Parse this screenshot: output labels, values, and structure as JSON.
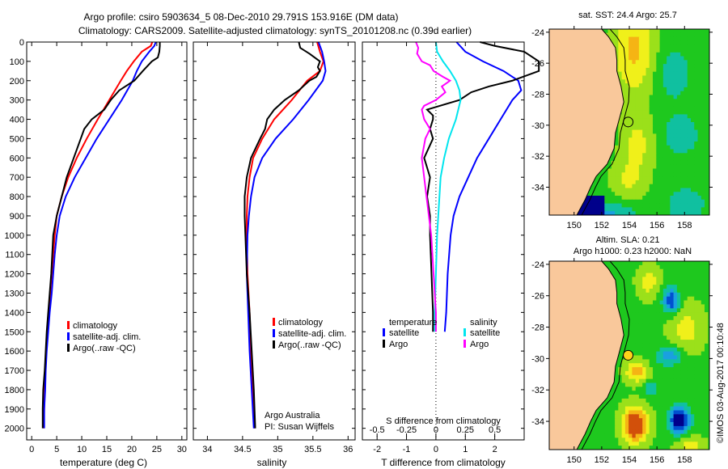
{
  "header": {
    "title_line1": "Argo profile: csiro 5903634_5 08-Dec-2010 29.791S 153.916E (DM data)",
    "title_line2": "Climatology: CARS2009. Satellite-adjusted climatology: synTS_20101208.nc (0.39d earlier)"
  },
  "colors": {
    "climatology": "#ff0000",
    "satellite": "#0000ff",
    "argo": "#000000",
    "sal_satellite": "#00e5ee",
    "sal_argo": "#ff00ff",
    "land": "#f9c89b"
  },
  "chart_data": [
    {
      "type": "line",
      "id": "temperature-profile",
      "xlabel": "temperature (deg C)",
      "ylabel": "",
      "xlim": [
        -1,
        31
      ],
      "ylim": [
        2060,
        0
      ],
      "xticks": [
        0,
        5,
        10,
        15,
        20,
        25,
        30
      ],
      "yticks": [
        0,
        100,
        200,
        300,
        400,
        500,
        600,
        700,
        800,
        900,
        1000,
        1100,
        1200,
        1300,
        1400,
        1500,
        1600,
        1700,
        1800,
        1900,
        2000
      ],
      "legend": [
        "climatology",
        "satellite-adj. clim.",
        "Argo(..raw -QC)"
      ],
      "legend_position": "center",
      "series": [
        {
          "name": "climatology",
          "color": "#ff0000",
          "depth": [
            0,
            20,
            50,
            100,
            150,
            200,
            300,
            400,
            500,
            600,
            700,
            800,
            900,
            1000,
            1100,
            1200,
            1300,
            1400,
            1500,
            1600,
            1700,
            1800,
            1900,
            2000
          ],
          "values": [
            24.1,
            23.8,
            22.0,
            20.4,
            19.0,
            17.8,
            15.5,
            13.2,
            11.0,
            9.0,
            7.3,
            6.0,
            5.0,
            4.6,
            4.3,
            4.0,
            3.7,
            3.4,
            3.1,
            2.9,
            2.7,
            2.6,
            2.5,
            2.4
          ]
        },
        {
          "name": "satellite-adj. clim.",
          "color": "#0000ff",
          "depth": [
            0,
            20,
            50,
            100,
            150,
            200,
            300,
            400,
            500,
            600,
            700,
            800,
            900,
            1000,
            1100,
            1200,
            1300,
            1400,
            1500,
            1600,
            1700,
            1800,
            1900,
            2000
          ],
          "values": [
            24.8,
            24.5,
            23.5,
            22.0,
            21.0,
            20.2,
            18.0,
            15.5,
            13.0,
            10.8,
            8.6,
            6.8,
            5.6,
            5.0,
            4.6,
            4.3,
            4.0,
            3.6,
            3.3,
            3.0,
            2.8,
            2.7,
            2.5,
            2.5
          ]
        },
        {
          "name": "Argo(..raw -QC)",
          "color": "#000000",
          "depth": [
            0,
            20,
            50,
            80,
            100,
            150,
            200,
            250,
            300,
            350,
            400,
            450,
            500,
            600,
            700,
            800,
            900,
            1000,
            1100,
            1200,
            1300,
            1400,
            1500,
            1600,
            1700,
            1800,
            1900,
            2000
          ],
          "values": [
            25.6,
            25.6,
            25.5,
            25.2,
            24.0,
            22.2,
            20.5,
            17.5,
            15.8,
            14.5,
            12.0,
            10.5,
            9.8,
            8.4,
            7.0,
            6.0,
            5.0,
            4.3,
            4.1,
            3.9,
            3.6,
            3.3,
            3.0,
            2.8,
            2.6,
            2.3,
            2.2,
            2.2
          ]
        }
      ]
    },
    {
      "type": "line",
      "id": "salinity-profile",
      "xlabel": "salinity",
      "xlim": [
        33.8,
        36.1
      ],
      "ylim": [
        2060,
        0
      ],
      "xticks": [
        34,
        34.5,
        35,
        35.5,
        36
      ],
      "xticklabels": [
        "34",
        "34.5",
        "35",
        "35.5",
        "36"
      ],
      "legend": [
        "climatology",
        "satellite-adj. clim.",
        "Argo(..raw -QC)"
      ],
      "annotation": [
        "Argo Australia",
        "PI: Susan Wijffels"
      ],
      "series": [
        {
          "name": "climatology",
          "color": "#ff0000",
          "depth": [
            0,
            50,
            100,
            150,
            200,
            300,
            400,
            500,
            600,
            700,
            800,
            900,
            1000,
            1200,
            1400,
            1600,
            1800,
            2000
          ],
          "values": [
            35.56,
            35.6,
            35.65,
            35.6,
            35.42,
            35.2,
            34.95,
            34.78,
            34.65,
            34.6,
            34.57,
            34.56,
            34.56,
            34.57,
            34.6,
            34.62,
            34.65,
            34.67
          ]
        },
        {
          "name": "satellite-adj. clim.",
          "color": "#0000ff",
          "depth": [
            0,
            50,
            100,
            150,
            200,
            300,
            400,
            500,
            600,
            700,
            800,
            900,
            1000,
            1200,
            1400,
            1600,
            1800,
            2000
          ],
          "values": [
            35.58,
            35.63,
            35.66,
            35.68,
            35.64,
            35.44,
            35.22,
            34.97,
            34.78,
            34.67,
            34.62,
            34.59,
            34.57,
            34.56,
            34.58,
            34.6,
            34.63,
            34.66
          ]
        },
        {
          "name": "Argo(..raw -QC)",
          "color": "#000000",
          "depth": [
            0,
            30,
            60,
            100,
            130,
            150,
            180,
            200,
            250,
            300,
            350,
            400,
            450,
            500,
            600,
            700,
            800,
            900,
            1000,
            1200,
            1400,
            1600,
            1800,
            2000
          ],
          "values": [
            35.3,
            35.32,
            35.45,
            35.6,
            35.57,
            35.6,
            35.55,
            35.45,
            35.3,
            35.1,
            34.95,
            34.85,
            34.82,
            34.75,
            34.62,
            34.56,
            34.53,
            34.53,
            34.54,
            34.56,
            34.6,
            34.63,
            34.66,
            34.68
          ]
        }
      ]
    },
    {
      "type": "line",
      "id": "difference-profile",
      "xlabel": "T difference from climatology",
      "xlabel_top": "S difference from climatology",
      "xlim": [
        -2.5,
        3.0
      ],
      "ylim": [
        2060,
        0
      ],
      "xticks": [
        -2,
        -1,
        0,
        1,
        2
      ],
      "s_xticks": [
        -0.5,
        -0.25,
        0,
        0.25,
        0.5
      ],
      "s_xticklabels": [
        "-0.5",
        "-0.25",
        "0",
        "0.25",
        "0.5"
      ],
      "legend_temperature_title": "temperature",
      "legend_salinity_title": "salinity",
      "legend": [
        "satellite",
        "Argo",
        "satellite",
        "Argo"
      ],
      "series": [
        {
          "name": "temperature satellite",
          "color": "#0000ff",
          "unit": "T",
          "depth": [
            0,
            50,
            100,
            150,
            200,
            250,
            300,
            400,
            500,
            600,
            700,
            800,
            900,
            1000,
            1200,
            1400,
            1500
          ],
          "values": [
            0.7,
            1.0,
            1.6,
            2.3,
            2.8,
            2.9,
            2.6,
            2.2,
            1.8,
            1.4,
            1.1,
            0.8,
            0.6,
            0.5,
            0.4,
            0.35,
            0.3
          ]
        },
        {
          "name": "temperature Argo",
          "color": "#000000",
          "unit": "T",
          "depth": [
            0,
            20,
            50,
            100,
            150,
            200,
            230,
            260,
            300,
            350,
            380,
            400,
            450,
            500,
            600,
            700,
            800,
            900,
            1000,
            1200,
            1400,
            1500
          ],
          "values": [
            1.5,
            2.0,
            3.0,
            3.5,
            3.5,
            2.6,
            1.8,
            1.2,
            0.8,
            -0.3,
            -0.1,
            -0.1,
            -0.2,
            -0.1,
            -0.4,
            -0.2,
            -0.3,
            -0.2,
            -0.2,
            -0.15,
            -0.1,
            -0.1
          ]
        },
        {
          "name": "salinity satellite",
          "color": "#00e5ee",
          "unit": "S",
          "depth": [
            0,
            50,
            100,
            150,
            200,
            250,
            300,
            400,
            500,
            600,
            700,
            800,
            900,
            1000,
            1200,
            1400,
            1500
          ],
          "values": [
            0.0,
            0.01,
            0.06,
            0.12,
            0.17,
            0.2,
            0.21,
            0.17,
            0.11,
            0.07,
            0.04,
            0.03,
            0.02,
            0.01,
            0.0,
            -0.01,
            -0.01
          ]
        },
        {
          "name": "salinity Argo",
          "color": "#ff00ff",
          "unit": "S",
          "depth": [
            0,
            30,
            60,
            100,
            120,
            150,
            180,
            200,
            230,
            260,
            300,
            330,
            350,
            400,
            450,
            500,
            600,
            700,
            800,
            900,
            1000,
            1200,
            1400,
            1500
          ],
          "values": [
            -0.17,
            -0.15,
            -0.16,
            -0.12,
            -0.05,
            -0.02,
            0.06,
            0.12,
            0.05,
            0.08,
            0.0,
            -0.1,
            -0.12,
            -0.1,
            -0.05,
            -0.09,
            -0.12,
            -0.1,
            -0.08,
            -0.06,
            -0.04,
            -0.02,
            0.0,
            0.0
          ]
        }
      ]
    },
    {
      "type": "heatmap",
      "id": "sst-map",
      "title": "sat. SST: 24.4 Argo: 25.7",
      "xlim": [
        148.2,
        159.8
      ],
      "ylim": [
        -35.8,
        -23.8
      ],
      "xticks": [
        150,
        152,
        154,
        156,
        158
      ],
      "yticks": [
        -24,
        -26,
        -28,
        -30,
        -32,
        -34
      ],
      "marker": {
        "lon": 153.916,
        "lat": -29.791
      }
    },
    {
      "type": "heatmap",
      "id": "sla-map",
      "title_line1": "Altim. SLA: 0.21",
      "title_line2": "Argo h1000: 0.23 h2000: NaN",
      "xlim": [
        148.2,
        159.8
      ],
      "ylim": [
        -35.8,
        -23.8
      ],
      "xticks": [
        150,
        152,
        154,
        156,
        158
      ],
      "yticks": [
        -24,
        -26,
        -28,
        -30,
        -32,
        -34
      ],
      "marker": {
        "lon": 153.916,
        "lat": -29.791
      }
    }
  ],
  "footer": {
    "credit": "©IMOS 03-Aug-2017 00:10:48"
  }
}
